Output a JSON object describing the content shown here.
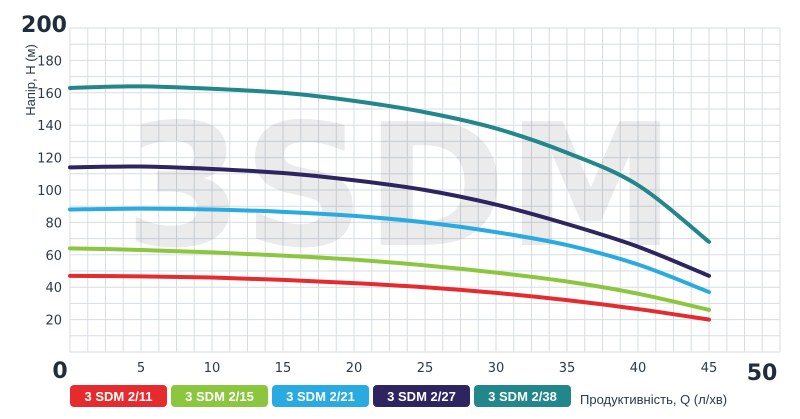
{
  "chart_data": {
    "type": "line",
    "watermark": "3SDM",
    "ylabel": "Напір, H (м)",
    "xlabel": "Продуктивність, Q (л/хв)",
    "xlim": [
      0,
      50
    ],
    "ylim": [
      0,
      200
    ],
    "xticks": [
      "5",
      "10",
      "15",
      "20",
      "25",
      "30",
      "35",
      "40",
      "45"
    ],
    "x_tick_values": [
      5,
      10,
      15,
      20,
      25,
      30,
      35,
      40,
      45
    ],
    "yticks": [
      "20",
      "40",
      "60",
      "80",
      "100",
      "120",
      "140",
      "160",
      "180"
    ],
    "y_tick_values": [
      20,
      40,
      60,
      80,
      100,
      120,
      140,
      160,
      180
    ],
    "x_corner_labels": {
      "origin": "0",
      "max": "50"
    },
    "y_max_label": "200",
    "grid": true,
    "legend_position": "bottom",
    "series": [
      {
        "name": "3 SDM 2/11",
        "color": "#e62b2f",
        "x": [
          0,
          5,
          10,
          15,
          20,
          25,
          30,
          35,
          40,
          45
        ],
        "y": [
          47,
          46.7,
          46,
          44.5,
          42.5,
          40,
          36.5,
          32,
          26.5,
          20
        ]
      },
      {
        "name": "3 SDM 2/15",
        "color": "#8cc63f",
        "x": [
          0,
          5,
          10,
          15,
          20,
          25,
          30,
          35,
          40,
          45
        ],
        "y": [
          64,
          63,
          61.5,
          59.5,
          57,
          53.5,
          49,
          43.5,
          36,
          26
        ]
      },
      {
        "name": "3 SDM 2/21",
        "color": "#29abe2",
        "x": [
          0,
          5,
          10,
          15,
          20,
          25,
          30,
          35,
          40,
          45
        ],
        "y": [
          88,
          88.5,
          88,
          86.5,
          84,
          80,
          74,
          66,
          54,
          37
        ]
      },
      {
        "name": "3 SDM 2/27",
        "color": "#2e2460",
        "x": [
          0,
          5,
          10,
          15,
          20,
          25,
          30,
          35,
          40,
          45
        ],
        "y": [
          114,
          114.5,
          113,
          110.5,
          106,
          100,
          91,
          79,
          65,
          47
        ]
      },
      {
        "name": "3 SDM 2/38",
        "color": "#21878a",
        "x": [
          0,
          5,
          10,
          15,
          20,
          25,
          30,
          35,
          40,
          45
        ],
        "y": [
          163,
          164,
          162.5,
          160,
          155,
          148,
          138,
          123,
          103,
          68
        ]
      }
    ]
  }
}
